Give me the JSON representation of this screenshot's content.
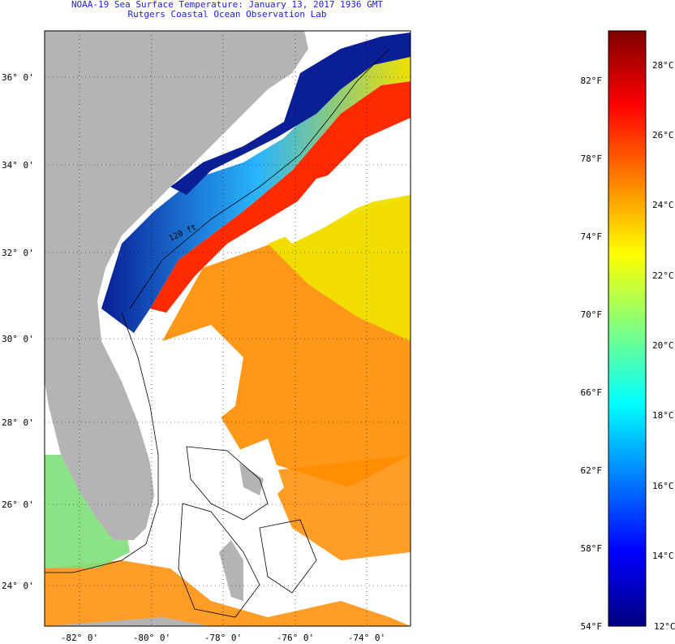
{
  "header": {
    "title_line1": "NOAA-19 Sea Surface Temperature:  January 13, 2017 1936 GMT",
    "title_line2": "Rutgers Coastal Ocean Observation Lab"
  },
  "map": {
    "lat_labels": [
      "36° 0'",
      "34° 0'",
      "32° 0'",
      "30° 0'",
      "28° 0'",
      "26° 0'",
      "24° 0'"
    ],
    "lon_labels": [
      "-82° 0'",
      "-80° 0'",
      "-78° 0'",
      "-76° 0'",
      "-74° 0'"
    ],
    "contour_label": "120 ft",
    "colors": {
      "land": "#b4b4b4",
      "cloud": "#ffffff",
      "gulf_stream": "#ff2a00",
      "warm": "#ff8c00",
      "mid": "#f0e000",
      "cool": "#28b4ff",
      "cold": "#0a1e96"
    }
  },
  "colorbar": {
    "fahrenheit_labels": [
      "82°F",
      "78°F",
      "74°F",
      "70°F",
      "66°F",
      "62°F",
      "58°F",
      "54°F"
    ],
    "celsius_labels": [
      "28°C",
      "26°C",
      "24°C",
      "22°C",
      "20°C",
      "18°C",
      "16°C",
      "14°C",
      "12°C"
    ],
    "gradient_stops": [
      "#000080",
      "#0000ff",
      "#0080ff",
      "#00ffff",
      "#80ff80",
      "#ffff00",
      "#ff8000",
      "#ff0000",
      "#800000"
    ]
  }
}
